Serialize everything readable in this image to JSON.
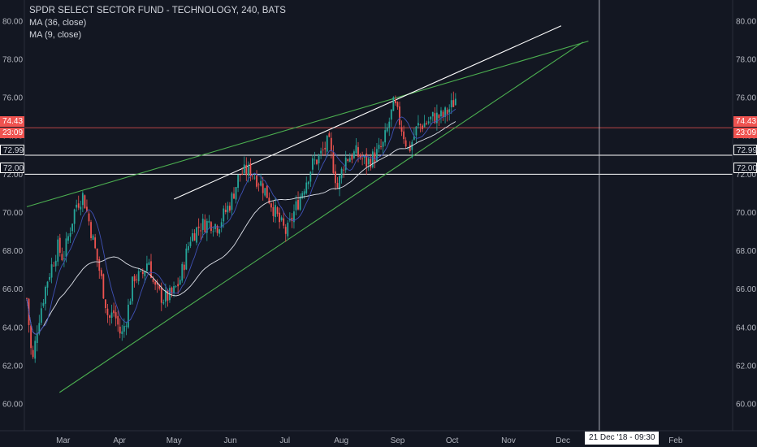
{
  "legend": {
    "title": "SPDR SELECT SECTOR FUND - TECHNOLOGY, 240, BATS",
    "ma1": "MA (36, close)",
    "ma2": "MA (9, close)"
  },
  "price_labels": {
    "last_price": "74.43",
    "countdown": "23:09",
    "line_1": "72.99",
    "line_2": "72.00"
  },
  "crosshair_label": "21 Dec '18 - 09:30",
  "colors": {
    "background": "#131722",
    "up": "#26a69a",
    "down": "#ef5350",
    "trendline_green": "#4caf50",
    "trendline_white": "#ffffff",
    "ma_white": "#e0e3eb",
    "ma_blue": "#3f51b5",
    "last_price": "#ef5350"
  },
  "chart_data": {
    "type": "line",
    "title": "SPDR SELECT SECTOR FUND - TECHNOLOGY, 240, BATS",
    "x_tick_labels": [
      "Mar",
      "Apr",
      "May",
      "Jun",
      "Jul",
      "Aug",
      "Sep",
      "Oct",
      "Nov",
      "Dec",
      "Feb"
    ],
    "y_tick_labels": [
      "60.00",
      "62.00",
      "64.00",
      "66.00",
      "68.00",
      "70.00",
      "72.00",
      "74.00",
      "76.00",
      "78.00",
      "80.00"
    ],
    "ylim": [
      58.6,
      81.1
    ],
    "grid": false,
    "series": [
      {
        "name": "close",
        "x": [
          "2018-02-09",
          "2018-02-12",
          "2018-02-15",
          "2018-02-20",
          "2018-02-26",
          "2018-03-01",
          "2018-03-08",
          "2018-03-12",
          "2018-03-16",
          "2018-03-22",
          "2018-03-26",
          "2018-03-29",
          "2018-04-02",
          "2018-04-05",
          "2018-04-09",
          "2018-04-13",
          "2018-04-17",
          "2018-04-20",
          "2018-04-25",
          "2018-04-30",
          "2018-05-04",
          "2018-05-10",
          "2018-05-15",
          "2018-05-21",
          "2018-05-25",
          "2018-06-01",
          "2018-06-06",
          "2018-06-12",
          "2018-06-18",
          "2018-06-22",
          "2018-06-28",
          "2018-07-02",
          "2018-07-06",
          "2018-07-10",
          "2018-07-16",
          "2018-07-20",
          "2018-07-25",
          "2018-07-30",
          "2018-08-03",
          "2018-08-09",
          "2018-08-15",
          "2018-08-20",
          "2018-08-24",
          "2018-08-30",
          "2018-09-04",
          "2018-09-07",
          "2018-09-12",
          "2018-09-17",
          "2018-09-21",
          "2018-09-26",
          "2018-10-01",
          "2018-10-03",
          "2018-10-04"
        ],
        "y": [
          65.5,
          62.0,
          64.2,
          66.4,
          68.2,
          67.6,
          70.4,
          70.9,
          69.2,
          66.5,
          64.4,
          64.8,
          63.5,
          64.6,
          66.7,
          66.6,
          67.6,
          66.1,
          65.5,
          65.7,
          66.4,
          68.7,
          69.3,
          69.5,
          69.3,
          70.5,
          72.0,
          72.2,
          71.5,
          70.8,
          69.5,
          68.9,
          70.0,
          71.0,
          72.5,
          72.9,
          73.7,
          71.3,
          72.8,
          73.1,
          72.6,
          73.0,
          73.5,
          75.7,
          74.2,
          73.2,
          74.5,
          74.7,
          75.0,
          75.0,
          75.6,
          76.0,
          74.43
        ]
      },
      {
        "name": "MA (36, close)",
        "values": []
      },
      {
        "name": "MA (9, close)",
        "values": []
      }
    ],
    "horizontal_lines": [
      74.43,
      72.99,
      72.0
    ],
    "trend_lines": [
      {
        "from": [
          "2018-02-09",
          70.3
        ],
        "to": [
          "2018-12-15",
          78.95
        ]
      },
      {
        "from": [
          "2018-02-27",
          60.6
        ],
        "to": [
          "2018-12-12",
          78.9
        ]
      },
      {
        "from": [
          "2018-05-01",
          70.7
        ],
        "to": [
          "2018-11-30",
          79.75
        ]
      }
    ]
  }
}
